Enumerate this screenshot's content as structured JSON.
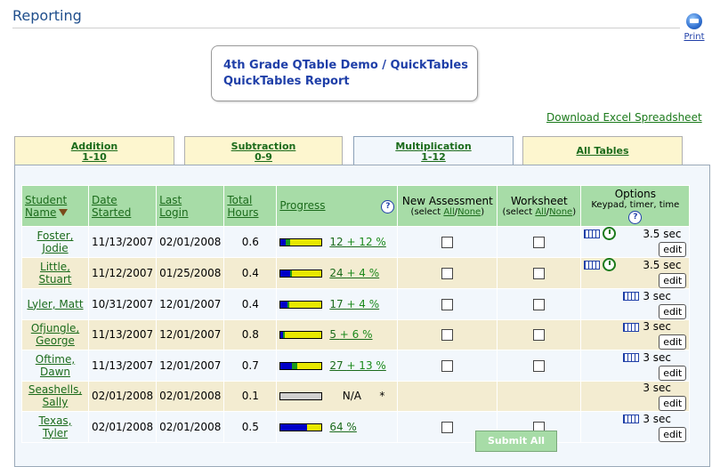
{
  "page": {
    "title": "Reporting",
    "print_label": "Print",
    "report_title_line1": "4th Grade QTable Demo / QuickTables",
    "report_title_line2": "QuickTables Report",
    "download_link": "Download Excel Spreadsheet"
  },
  "tabs": [
    {
      "line1": "Addition",
      "line2": "1-10"
    },
    {
      "line1": "Subtraction",
      "line2": "0-9"
    },
    {
      "line1": "Multiplication",
      "line2": "1-12"
    },
    {
      "line1": "All Tables",
      "line2": ""
    }
  ],
  "table": {
    "headers": {
      "student_l1": "Student",
      "student_l2": "Name",
      "date_l1": "Date",
      "date_l2": "Started",
      "login_l1": "Last",
      "login_l2": "Login",
      "hours_l1": "Total",
      "hours_l2": "Hours",
      "progress": "Progress",
      "new_assessment": "New Assessment",
      "worksheet": "Worksheet",
      "select_prefix": "(select ",
      "all": "All",
      "slash": "/",
      "none": "None",
      "select_suffix": ")",
      "options": "Options",
      "options_sub": "Keypad, timer, time"
    },
    "rows": [
      {
        "name_l1": "Foster,",
        "name_l2": "Jodie",
        "date_started": "11/13/2007",
        "last_login": "02/01/2008",
        "hours": "0.6",
        "progress_text": "12 + 12 %",
        "blue": 0.12,
        "green": 0.12,
        "time": "3.5 sec",
        "edit": "edit"
      },
      {
        "name_l1": "Little,",
        "name_l2": "Stuart",
        "date_started": "11/12/2007",
        "last_login": "01/25/2008",
        "hours": "0.4",
        "progress_text": "24 + 4 %",
        "blue": 0.24,
        "green": 0.04,
        "time": "3.5 sec",
        "edit": "edit"
      },
      {
        "name_l1": "Lyler, Matt",
        "name_l2": "",
        "date_started": "10/31/2007",
        "last_login": "12/01/2007",
        "hours": "0.4",
        "progress_text": "17 + 4 %",
        "blue": 0.17,
        "green": 0.04,
        "time": "3 sec",
        "edit": "edit"
      },
      {
        "name_l1": "Ofjungle,",
        "name_l2": "George",
        "date_started": "11/13/2007",
        "last_login": "12/01/2007",
        "hours": "0.8",
        "progress_text": "5 + 6 %",
        "blue": 0.05,
        "green": 0.06,
        "time": "3 sec",
        "edit": "edit"
      },
      {
        "name_l1": "Oftime,",
        "name_l2": "Dawn",
        "date_started": "11/13/2007",
        "last_login": "12/01/2007",
        "hours": "0.7",
        "progress_text": "27 + 13 %",
        "blue": 0.27,
        "green": 0.13,
        "time": "3 sec",
        "edit": "edit"
      },
      {
        "name_l1": "Seashells,",
        "name_l2": "Sally",
        "date_started": "02/01/2008",
        "last_login": "02/01/2008",
        "hours": "0.1",
        "progress_text": "N/A",
        "na_mark": "*",
        "blue": 0,
        "green": 0,
        "time": "3 sec",
        "edit": "edit"
      },
      {
        "name_l1": "Texas,",
        "name_l2": "Tyler",
        "date_started": "02/01/2008",
        "last_login": "02/01/2008",
        "hours": "0.5",
        "progress_text": "64 %",
        "blue": 0.64,
        "green": 0,
        "time": "3 sec",
        "edit": "edit"
      }
    ]
  },
  "submit_label": "Submit All"
}
